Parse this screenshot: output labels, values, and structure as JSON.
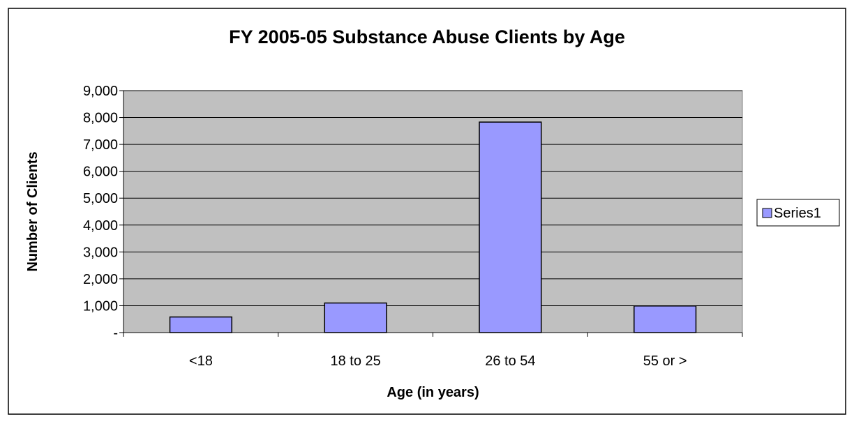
{
  "chart_data": {
    "type": "bar",
    "title": "FY 2005-05 Substance Abuse Clients by Age",
    "xlabel": "Age (in years)",
    "ylabel": "Number of Clients",
    "categories": [
      "<18",
      "18 to 25",
      "26 to 54",
      "55 or >"
    ],
    "series": [
      {
        "name": "Series1",
        "values": [
          580,
          1100,
          7830,
          990
        ]
      }
    ],
    "ylim": [
      0,
      9000
    ],
    "yticks": [
      0,
      1000,
      2000,
      3000,
      4000,
      5000,
      6000,
      7000,
      8000,
      9000
    ],
    "ytick_labels": [
      "-",
      "1,000",
      "2,000",
      "3,000",
      "4,000",
      "5,000",
      "6,000",
      "7,000",
      "8,000",
      "9,000"
    ],
    "grid": true,
    "legend": "right",
    "colors": {
      "bar_fill": "#9999FF",
      "bar_stroke": "#000000",
      "plot_background": "#C0C0C0",
      "gridline": "#000000"
    }
  }
}
